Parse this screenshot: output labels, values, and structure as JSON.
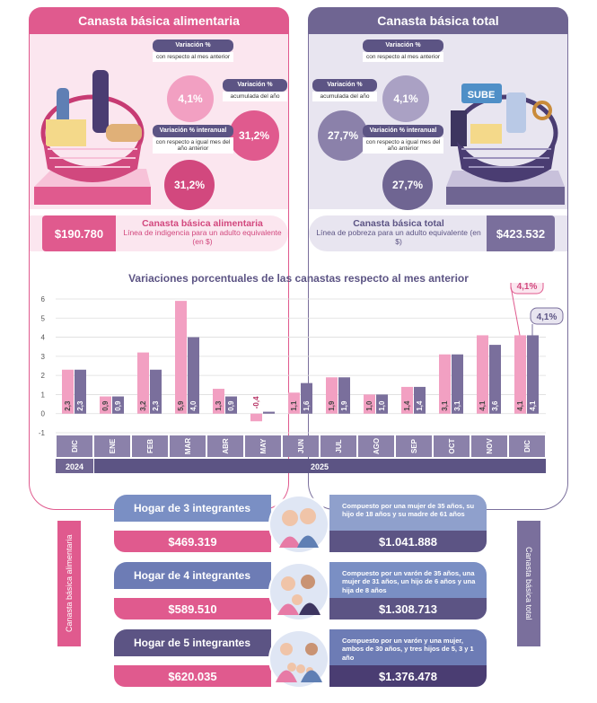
{
  "left_panel": {
    "title": "Canasta básica alimentaria",
    "var_monthly": {
      "label": "Variación %",
      "sub": "con respecto al mes anterior",
      "value": "4,1%"
    },
    "var_accum": {
      "label": "Variación %",
      "sub": "acumulada del año",
      "value": "31,2%"
    },
    "var_interanual": {
      "label": "Variación % interanual",
      "sub": "con respecto a igual mes del año anterior",
      "value": "31,2%"
    },
    "price": "$190.780",
    "price_title": "Canasta básica alimentaria",
    "price_desc": "Línea de indigencia para un adulto equivalente (en $)"
  },
  "right_panel": {
    "title": "Canasta básica total",
    "var_monthly": {
      "label": "Variación %",
      "sub": "con respecto al mes anterior",
      "value": "4,1%"
    },
    "var_accum": {
      "label": "Variación %",
      "sub": "acumulada del año",
      "value": "27,7%"
    },
    "var_interanual": {
      "label": "Variación % interanual",
      "sub": "con respecto a igual mes del año anterior",
      "value": "27,7%"
    },
    "price": "$423.532",
    "price_title": "Canasta básica total",
    "price_desc": "Línea de pobreza para un adulto equivalente (en $)",
    "sube_text": "SUBE"
  },
  "chart_data": {
    "type": "bar",
    "title": "Variaciones porcentuales de las canastas respecto al mes anterior",
    "categories": [
      "DIC",
      "ENE",
      "FEB",
      "MAR",
      "ABR",
      "MAY",
      "JUN",
      "JUL",
      "AGO",
      "SEP",
      "OCT",
      "NOV",
      "DIC"
    ],
    "series": [
      {
        "name": "Canasta básica alimentaria",
        "color": "#f2a0c2",
        "values": [
          2.3,
          0.9,
          3.2,
          5.9,
          1.3,
          -0.4,
          1.1,
          1.9,
          1.0,
          1.4,
          3.1,
          4.1,
          4.1
        ],
        "labels": [
          "2,3",
          "0,9",
          "3,2",
          "5,9",
          "1,3",
          "-0,4",
          "1,1",
          "1,9",
          "1,0",
          "1,4",
          "3,1",
          "4,1",
          "4,1"
        ]
      },
      {
        "name": "Canasta básica total",
        "color": "#7a6f9c",
        "values": [
          2.3,
          0.9,
          2.3,
          4.0,
          0.9,
          0.1,
          1.6,
          1.9,
          1.0,
          1.4,
          3.1,
          3.6,
          4.1
        ],
        "labels": [
          "2,3",
          "0,9",
          "2,3",
          "4,0",
          "0,9",
          "0,1",
          "1,6",
          "1,9",
          "1,0",
          "1,4",
          "3,1",
          "3,6",
          "4,1"
        ]
      }
    ],
    "yticks": [
      "6",
      "5",
      "4",
      "3",
      "2",
      "1",
      "0",
      "-1"
    ],
    "ylim": [
      -1,
      6
    ],
    "years": [
      "2024",
      "2025"
    ],
    "callout_pink": "4,1%",
    "callout_purple": "4,1%"
  },
  "households": [
    {
      "title": "Hogar de 3 integrantes",
      "cba": "$469.319",
      "cbt": "$1.041.888",
      "desc": "Compuesto por una mujer de 35 años, su hijo de 18 años y su madre de 61 años"
    },
    {
      "title": "Hogar de 4 integrantes",
      "cba": "$589.510",
      "cbt": "$1.308.713",
      "desc": "Compuesto por un varón de 35 años, una mujer de 31 años, un hijo de 6 años y una hija de 8 años"
    },
    {
      "title": "Hogar de 5 integrantes",
      "cba": "$620.035",
      "cbt": "$1.376.478",
      "desc": "Compuesto por un varón y una mujer, ambos de 30 años, y tres hijos de 5, 3 y 1 año"
    }
  ],
  "side_labels": {
    "left": "Canasta básica alimentaria",
    "right": "Canasta básica total"
  },
  "colors": {
    "pink": "#e05a8e",
    "pink_light": "#f2a0c2",
    "purple": "#6f6592",
    "purple_light": "#aaa1c4",
    "navy": "#5c5484"
  }
}
